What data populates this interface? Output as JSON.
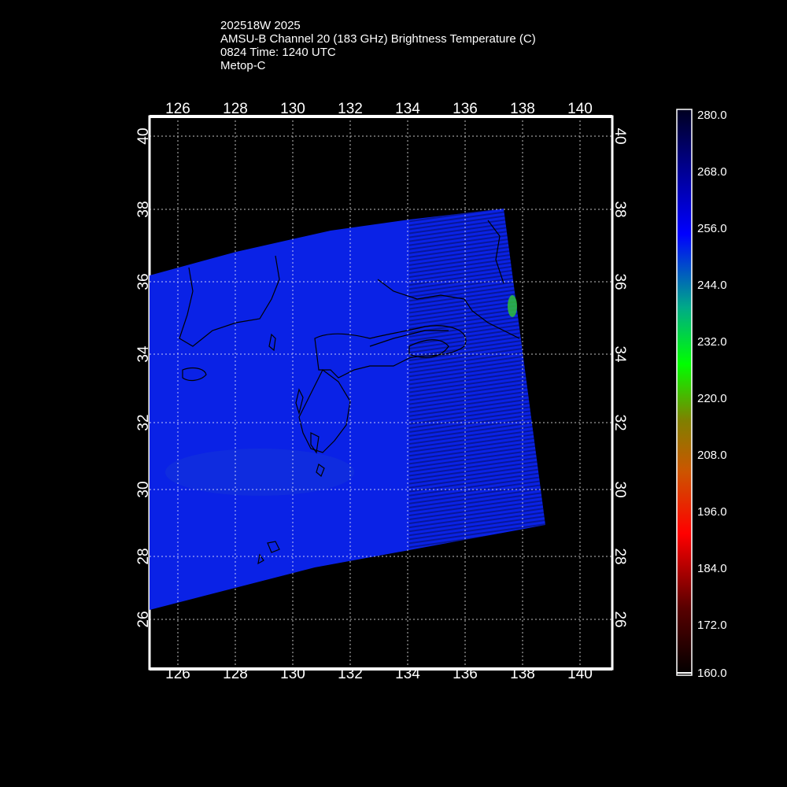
{
  "title": {
    "line1": "202518W 2025",
    "line2": "AMSU-B Channel 20 (183 GHz) Brightness Temperature (C)",
    "line3": "0824 Time: 1240 UTC",
    "line4": "Metop-C"
  },
  "map": {
    "lon_range": [
      125.1,
      141.1
    ],
    "lat_range": [
      24.8,
      40.6
    ],
    "lon_ticks": [
      "126",
      "128",
      "130",
      "132",
      "134",
      "136",
      "138",
      "140"
    ],
    "lat_ticks": [
      "26",
      "28",
      "30",
      "32",
      "34",
      "36",
      "38",
      "40"
    ],
    "background_color": "#000000",
    "swath_color": "#0a22e6",
    "grid": "dotted"
  },
  "colorbar": {
    "min": 160.0,
    "max": 280.0,
    "tick_labels": [
      "280.0",
      "268.0",
      "256.0",
      "244.0",
      "232.0",
      "220.0",
      "208.0",
      "196.0",
      "184.0",
      "172.0",
      "160.0"
    ],
    "colors": [
      "#000000",
      "#5a0000",
      "#ff0000",
      "#cc5500",
      "#808000",
      "#00ff00",
      "#00aa88",
      "#0000ff",
      "#00008b",
      "#000020"
    ]
  }
}
